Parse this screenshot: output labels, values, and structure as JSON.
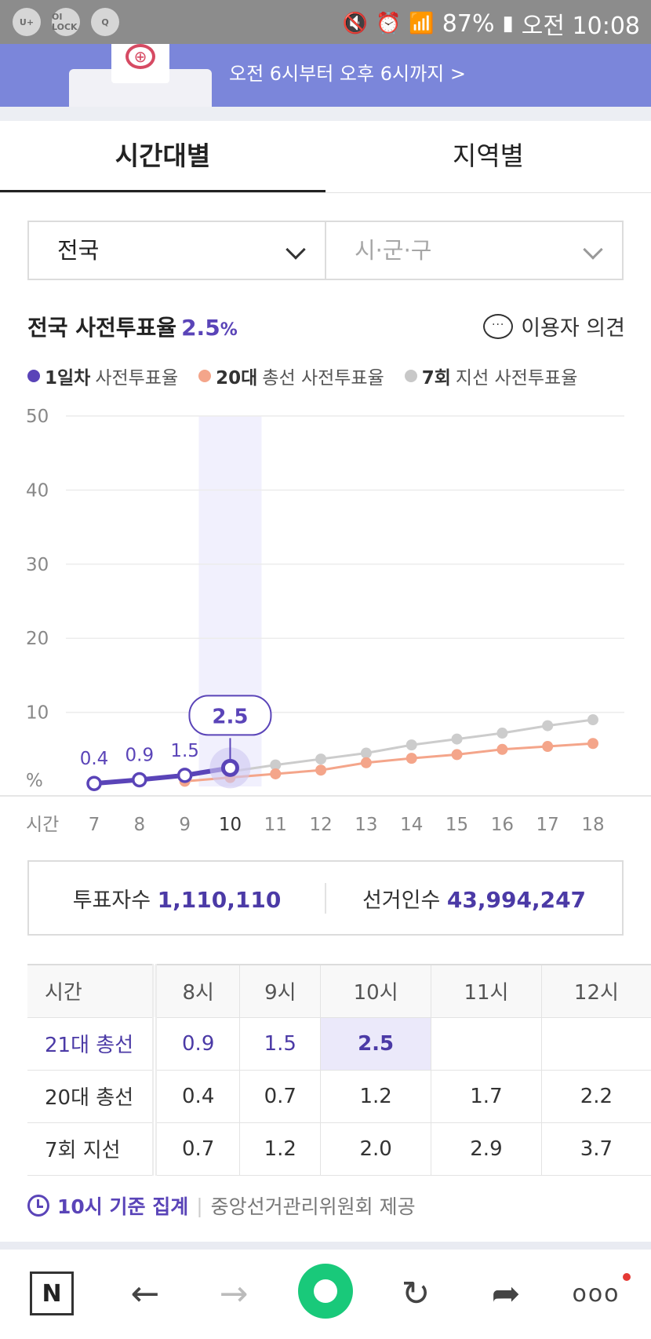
{
  "status_bar": {
    "left_icons": [
      "U+",
      "OI LOCK",
      "Q"
    ],
    "battery": "87%",
    "time": "오전 10:08"
  },
  "banner": {
    "subtitle": "오전 6시부터 오후 6시까지 >"
  },
  "tabs": [
    {
      "label": "시간대별",
      "active": true
    },
    {
      "label": "지역별",
      "active": false
    }
  ],
  "filters": {
    "region": "전국",
    "district_placeholder": "시·군·구"
  },
  "heading": {
    "label": "전국 사전투표율",
    "value": "2.5",
    "unit": "%"
  },
  "feedback_label": "이용자 의견",
  "legend": [
    {
      "bold": "1일차",
      "text": "사전투표율",
      "color": "#5a44b8"
    },
    {
      "bold": "20대",
      "text": "총선 사전투표율",
      "color": "#f4a58a"
    },
    {
      "bold": "7회",
      "text": "지선 사전투표율",
      "color": "#c8c8c8"
    }
  ],
  "chart_data": {
    "type": "line",
    "x": [
      7,
      8,
      9,
      10,
      11,
      12,
      13,
      14,
      15,
      16,
      17,
      18
    ],
    "xlabel": "시간",
    "ylabel": "%",
    "ylim": [
      0,
      50
    ],
    "yticks": [
      10,
      20,
      30,
      40,
      50
    ],
    "grid": true,
    "highlight_x": 10,
    "series": [
      {
        "name": "1일차 사전투표율",
        "color": "#5a44b8",
        "x": [
          7,
          8,
          9,
          10
        ],
        "values": [
          0.4,
          0.9,
          1.5,
          2.5
        ],
        "labels": [
          "0.4",
          "0.9",
          "1.5",
          "2.5"
        ]
      },
      {
        "name": "20대 총선 사전투표율",
        "color": "#f4a58a",
        "x": [
          9,
          10,
          11,
          12,
          13,
          14,
          15,
          16,
          17,
          18
        ],
        "values": [
          0.7,
          1.2,
          1.7,
          2.2,
          3.2,
          3.8,
          4.3,
          5.0,
          5.4,
          5.8
        ]
      },
      {
        "name": "7회 지선 사전투표율",
        "color": "#cccccc",
        "x": [
          10,
          11,
          12,
          13,
          14,
          15,
          16,
          17,
          18
        ],
        "values": [
          2.0,
          2.9,
          3.7,
          4.5,
          5.6,
          6.4,
          7.2,
          8.2,
          9.0
        ]
      }
    ]
  },
  "totals": {
    "voters_label": "투표자수",
    "voters_value": "1,110,110",
    "electors_label": "선거인수",
    "electors_value": "43,994,247"
  },
  "table": {
    "header": [
      "시간",
      "8시",
      "9시",
      "10시",
      "11시",
      "12시"
    ],
    "rows": [
      [
        "21대 총선",
        "0.9",
        "1.5",
        "2.5",
        "",
        ""
      ],
      [
        "20대 총선",
        "0.4",
        "0.7",
        "1.2",
        "1.7",
        "2.2"
      ],
      [
        "7회 지선",
        "0.7",
        "1.2",
        "2.0",
        "2.9",
        "3.7"
      ]
    ]
  },
  "footnote": {
    "basis": "10시 기준 집계",
    "separator": "|",
    "source": "중앙선거관리위원회 제공"
  },
  "bottom_nav": {
    "n_label": "N",
    "back": "←",
    "forward": "→",
    "refresh": "↻",
    "share": "➦",
    "more": "ooo"
  }
}
